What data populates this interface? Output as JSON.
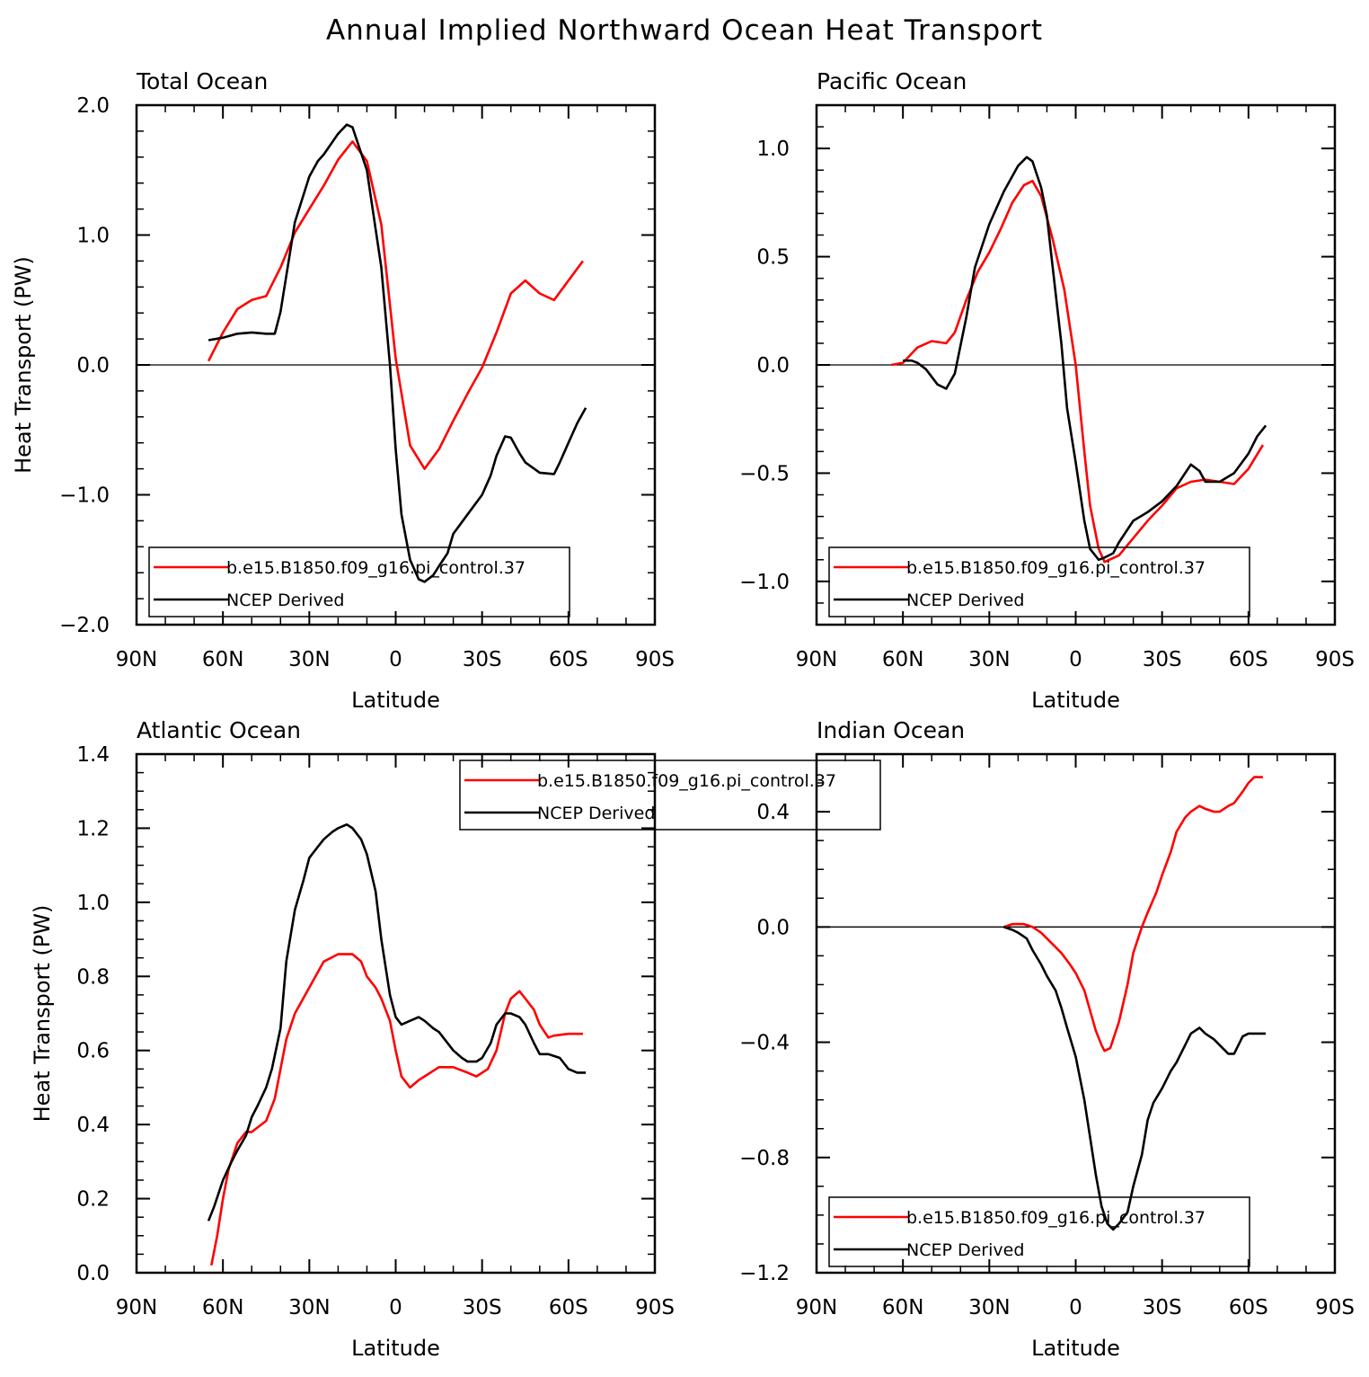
{
  "title": "Annual Implied Northward Ocean Heat Transport",
  "colors": {
    "model": "#ff0000",
    "obs": "#000000"
  },
  "legend": {
    "model": "b.e15.B1850.f09_g16.pi_control.37",
    "obs": "NCEP Derived"
  },
  "chart_data": [
    {
      "type": "line",
      "title": "Total Ocean",
      "xlabel": "Latitude",
      "ylabel": "Heat Transport (PW)",
      "xlim": [
        90,
        -90
      ],
      "ylim": [
        -2.0,
        2.0
      ],
      "x_ticks": [
        90,
        60,
        30,
        0,
        -30,
        -60,
        -90
      ],
      "x_tick_labels": [
        "90N",
        "60N",
        "30N",
        "0",
        "30S",
        "60S",
        "90S"
      ],
      "y_ticks": [
        -2.0,
        -1.0,
        0.0,
        1.0,
        2.0
      ],
      "y_tick_labels": [
        "−2.0",
        "−1.0",
        "0.0",
        "1.0",
        "2.0"
      ],
      "y_minor_step": 0.2,
      "zero_line": true,
      "legend_position": "bottom-center",
      "series": [
        {
          "name": "b.e15.B1850.f09_g16.pi_control.37",
          "color": "#ff0000",
          "x": [
            65,
            60,
            55,
            50,
            45,
            40,
            35,
            30,
            25,
            20,
            15,
            10,
            5,
            0,
            -5,
            -10,
            -15,
            -20,
            -25,
            -30,
            -35,
            -40,
            -45,
            -50,
            -55,
            -60,
            -65
          ],
          "y": [
            0.03,
            0.25,
            0.43,
            0.5,
            0.53,
            0.75,
            1.02,
            1.2,
            1.38,
            1.58,
            1.72,
            1.57,
            1.08,
            0.05,
            -0.62,
            -0.8,
            -0.65,
            -0.43,
            -0.22,
            -0.02,
            0.25,
            0.55,
            0.65,
            0.55,
            0.5,
            0.65,
            0.8
          ]
        },
        {
          "name": "NCEP Derived",
          "color": "#000000",
          "x": [
            65,
            60,
            55,
            50,
            45,
            42,
            40,
            35,
            30,
            27,
            25,
            20,
            17,
            15,
            10,
            5,
            2,
            0,
            -2,
            -5,
            -8,
            -10,
            -13,
            -15,
            -18,
            -20,
            -25,
            -30,
            -33,
            -35,
            -38,
            -40,
            -43,
            -45,
            -50,
            -55,
            -57,
            -60,
            -63,
            -66
          ],
          "y": [
            0.19,
            0.21,
            0.24,
            0.25,
            0.24,
            0.24,
            0.41,
            1.1,
            1.45,
            1.57,
            1.62,
            1.78,
            1.85,
            1.83,
            1.5,
            0.75,
            0.0,
            -0.65,
            -1.15,
            -1.5,
            -1.65,
            -1.67,
            -1.62,
            -1.55,
            -1.45,
            -1.3,
            -1.15,
            -1.0,
            -0.85,
            -0.7,
            -0.55,
            -0.56,
            -0.68,
            -0.75,
            -0.83,
            -0.84,
            -0.75,
            -0.6,
            -0.45,
            -0.33
          ]
        }
      ]
    },
    {
      "type": "line",
      "title": "Pacific Ocean",
      "xlabel": "Latitude",
      "ylabel": "",
      "xlim": [
        90,
        -90
      ],
      "ylim": [
        -1.2,
        1.2
      ],
      "x_ticks": [
        90,
        60,
        30,
        0,
        -30,
        -60,
        -90
      ],
      "x_tick_labels": [
        "90N",
        "60N",
        "30N",
        "0",
        "30S",
        "60S",
        "90S"
      ],
      "y_ticks": [
        -1.0,
        -0.5,
        0.0,
        0.5,
        1.0
      ],
      "y_tick_labels": [
        "−1.0",
        "−0.5",
        "0.0",
        "0.5",
        "1.0"
      ],
      "y_minor_step": 0.1,
      "zero_line": true,
      "legend_position": "bottom-center",
      "series": [
        {
          "name": "b.e15.B1850.f09_g16.pi_control.37",
          "color": "#ff0000",
          "x": [
            64,
            60,
            55,
            50,
            45,
            42,
            38,
            34,
            30,
            26,
            22,
            18,
            15,
            12,
            8,
            4,
            0,
            -3,
            -5,
            -8,
            -10,
            -15,
            -20,
            -25,
            -30,
            -35,
            -40,
            -45,
            -50,
            -55,
            -60,
            -65
          ],
          "y": [
            0.0,
            0.01,
            0.08,
            0.11,
            0.1,
            0.15,
            0.3,
            0.43,
            0.52,
            0.63,
            0.75,
            0.83,
            0.85,
            0.78,
            0.58,
            0.35,
            0.0,
            -0.4,
            -0.65,
            -0.85,
            -0.91,
            -0.88,
            -0.8,
            -0.72,
            -0.65,
            -0.57,
            -0.54,
            -0.53,
            -0.54,
            -0.55,
            -0.48,
            -0.37
          ]
        },
        {
          "name": "NCEP Derived",
          "color": "#000000",
          "x": [
            60,
            57,
            55,
            52,
            48,
            45,
            42,
            38,
            35,
            30,
            25,
            20,
            17,
            15,
            12,
            10,
            8,
            5,
            3,
            0,
            -3,
            -5,
            -8,
            -10,
            -13,
            -15,
            -20,
            -25,
            -30,
            -35,
            -40,
            -43,
            -45,
            -50,
            -55,
            -60,
            -63,
            -66
          ],
          "y": [
            0.02,
            0.02,
            0.01,
            -0.02,
            -0.09,
            -0.11,
            -0.04,
            0.22,
            0.45,
            0.65,
            0.8,
            0.92,
            0.96,
            0.94,
            0.82,
            0.69,
            0.45,
            0.1,
            -0.2,
            -0.45,
            -0.72,
            -0.85,
            -0.9,
            -0.89,
            -0.87,
            -0.82,
            -0.72,
            -0.68,
            -0.63,
            -0.56,
            -0.46,
            -0.49,
            -0.54,
            -0.54,
            -0.5,
            -0.41,
            -0.33,
            -0.28
          ]
        }
      ]
    },
    {
      "type": "line",
      "title": "Atlantic Ocean",
      "xlabel": "Latitude",
      "ylabel": "Heat Transport (PW)",
      "xlim": [
        90,
        -90
      ],
      "ylim": [
        0.0,
        1.4
      ],
      "x_ticks": [
        90,
        60,
        30,
        0,
        -30,
        -60,
        -90
      ],
      "x_tick_labels": [
        "90N",
        "60N",
        "30N",
        "0",
        "30S",
        "60S",
        "90S"
      ],
      "y_ticks": [
        0.0,
        0.2,
        0.4,
        0.6,
        0.8,
        1.0,
        1.2,
        1.4
      ],
      "y_tick_labels": [
        "0.0",
        "0.2",
        "0.4",
        "0.6",
        "0.8",
        "1.0",
        "1.2",
        "1.4"
      ],
      "y_minor_step": 0.05,
      "zero_line": false,
      "legend_position": "top-center",
      "series": [
        {
          "name": "b.e15.B1850.f09_g16.pi_control.37",
          "color": "#ff0000",
          "x": [
            64,
            62,
            60,
            58,
            55,
            52,
            50,
            45,
            42,
            40,
            38,
            35,
            30,
            25,
            20,
            15,
            12,
            10,
            7,
            5,
            2,
            0,
            -2,
            -5,
            -8,
            -10,
            -15,
            -20,
            -25,
            -28,
            -32,
            -35,
            -38,
            -40,
            -43,
            -45,
            -48,
            -50,
            -53,
            -55,
            -60,
            -65
          ],
          "y": [
            0.02,
            0.1,
            0.2,
            0.28,
            0.35,
            0.38,
            0.38,
            0.41,
            0.47,
            0.55,
            0.63,
            0.7,
            0.77,
            0.84,
            0.86,
            0.86,
            0.84,
            0.8,
            0.77,
            0.74,
            0.68,
            0.6,
            0.53,
            0.5,
            0.52,
            0.53,
            0.555,
            0.555,
            0.54,
            0.53,
            0.55,
            0.6,
            0.7,
            0.74,
            0.76,
            0.74,
            0.71,
            0.67,
            0.635,
            0.64,
            0.645,
            0.645
          ]
        },
        {
          "name": "NCEP Derived",
          "color": "#000000",
          "x": [
            65,
            63,
            60,
            57,
            55,
            52,
            50,
            48,
            45,
            43,
            40,
            38,
            35,
            32,
            30,
            27,
            25,
            22,
            20,
            17,
            15,
            12,
            10,
            7,
            5,
            2,
            0,
            -2,
            -5,
            -8,
            -10,
            -13,
            -15,
            -20,
            -23,
            -25,
            -28,
            -30,
            -33,
            -35,
            -38,
            -40,
            -43,
            -45,
            -48,
            -50,
            -53,
            -55,
            -57,
            -60,
            -63,
            -66
          ],
          "y": [
            0.14,
            0.18,
            0.25,
            0.3,
            0.33,
            0.37,
            0.42,
            0.45,
            0.5,
            0.55,
            0.66,
            0.84,
            0.98,
            1.06,
            1.12,
            1.15,
            1.17,
            1.19,
            1.2,
            1.21,
            1.2,
            1.17,
            1.13,
            1.03,
            0.9,
            0.75,
            0.69,
            0.67,
            0.68,
            0.69,
            0.68,
            0.66,
            0.65,
            0.6,
            0.58,
            0.57,
            0.57,
            0.58,
            0.62,
            0.67,
            0.7,
            0.7,
            0.69,
            0.67,
            0.62,
            0.59,
            0.59,
            0.585,
            0.58,
            0.55,
            0.54,
            0.54
          ]
        }
      ]
    },
    {
      "type": "line",
      "title": "Indian Ocean",
      "xlabel": "Latitude",
      "ylabel": "",
      "xlim": [
        90,
        -90
      ],
      "ylim": [
        -1.2,
        0.6
      ],
      "x_ticks": [
        90,
        60,
        30,
        0,
        -30,
        -60,
        -90
      ],
      "x_tick_labels": [
        "90N",
        "60N",
        "30N",
        "0",
        "30S",
        "60S",
        "90S"
      ],
      "y_ticks": [
        -1.2,
        -0.8,
        -0.4,
        0.0,
        0.4
      ],
      "y_tick_labels": [
        "−1.2",
        "−0.8",
        "−0.4",
        "0.0",
        "0.4"
      ],
      "y_minor_step": 0.1,
      "zero_line": true,
      "legend_position": "bottom-center",
      "series": [
        {
          "name": "b.e15.B1850.f09_g16.pi_control.37",
          "color": "#ff0000",
          "x": [
            25,
            22,
            20,
            18,
            15,
            12,
            8,
            5,
            2,
            0,
            -3,
            -5,
            -7,
            -9,
            -10,
            -12,
            -15,
            -18,
            -20,
            -23,
            -25,
            -28,
            -30,
            -33,
            -35,
            -38,
            -40,
            -43,
            -45,
            -48,
            -50,
            -53,
            -55,
            -58,
            -60,
            -62,
            -65
          ],
          "y": [
            0.0,
            0.01,
            0.01,
            0.01,
            0.0,
            -0.02,
            -0.06,
            -0.09,
            -0.13,
            -0.16,
            -0.22,
            -0.29,
            -0.36,
            -0.41,
            -0.43,
            -0.42,
            -0.33,
            -0.2,
            -0.09,
            0.0,
            0.05,
            0.12,
            0.18,
            0.26,
            0.33,
            0.38,
            0.4,
            0.42,
            0.41,
            0.4,
            0.4,
            0.42,
            0.43,
            0.47,
            0.5,
            0.52,
            0.52
          ]
        },
        {
          "name": "NCEP Derived",
          "color": "#000000",
          "x": [
            25,
            22,
            20,
            17,
            15,
            12,
            10,
            7,
            5,
            3,
            0,
            -3,
            -5,
            -7,
            -9,
            -11,
            -13,
            -15,
            -18,
            -20,
            -23,
            -25,
            -27,
            -30,
            -33,
            -35,
            -37,
            -40,
            -43,
            -45,
            -48,
            -50,
            -53,
            -55,
            -58,
            -60,
            -63,
            -66
          ],
          "y": [
            0.0,
            -0.01,
            -0.02,
            -0.04,
            -0.08,
            -0.13,
            -0.17,
            -0.22,
            -0.28,
            -0.35,
            -0.45,
            -0.6,
            -0.73,
            -0.86,
            -0.97,
            -1.03,
            -1.05,
            -1.03,
            -0.99,
            -0.9,
            -0.79,
            -0.67,
            -0.61,
            -0.56,
            -0.5,
            -0.47,
            -0.43,
            -0.37,
            -0.35,
            -0.37,
            -0.39,
            -0.41,
            -0.44,
            -0.44,
            -0.38,
            -0.37,
            -0.37,
            -0.37
          ]
        }
      ]
    }
  ]
}
